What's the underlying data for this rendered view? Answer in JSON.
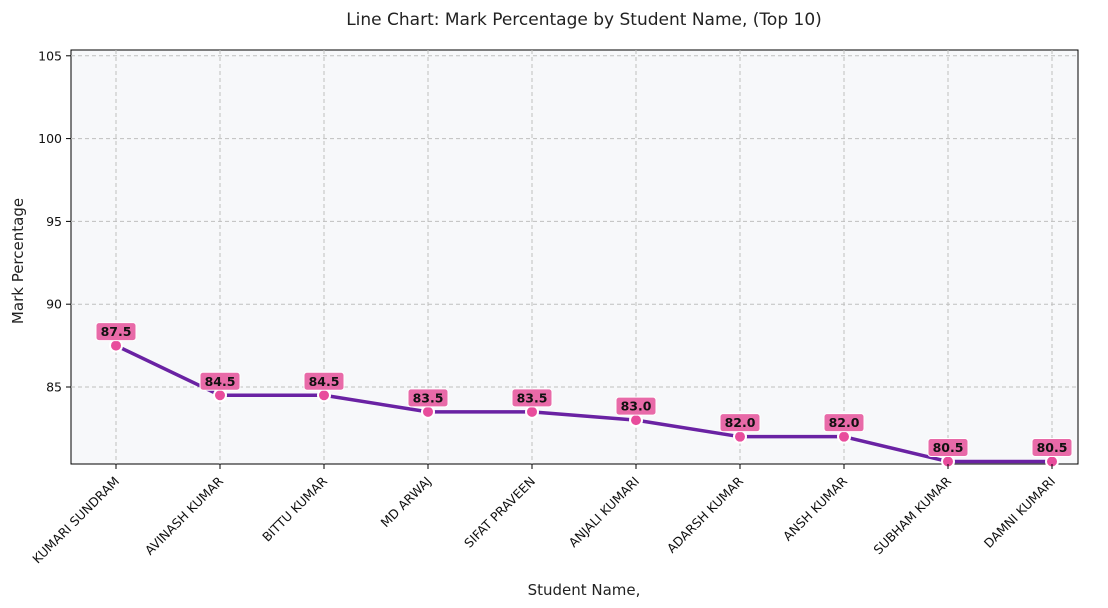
{
  "chart_data": {
    "type": "line",
    "title": "Line Chart: Mark Percentage by Student Name, (Top 10)",
    "xlabel": "Student Name,",
    "ylabel": "Mark Percentage",
    "categories": [
      "KUMARI SUNDRAM",
      "AVINASH KUMAR",
      "BITTU KUMAR",
      "MD ARWAJ",
      "SIFAT PRAVEEN",
      "ANJALI KUMARI",
      "ADARSH KUMAR",
      "ANSH KUMAR",
      "SUBHAM KUMAR",
      "DAMNI KUMARI"
    ],
    "values": [
      87.5,
      84.5,
      84.5,
      83.5,
      83.5,
      83.0,
      82.0,
      82.0,
      80.5,
      80.5
    ],
    "data_labels": [
      "87.5",
      "84.5",
      "84.5",
      "83.5",
      "83.5",
      "83.0",
      "82.0",
      "82.0",
      "80.5",
      "80.5"
    ],
    "ylim": [
      80.35,
      105.35
    ],
    "yticks": [
      85,
      90,
      95,
      100,
      105
    ],
    "ytick_labels": [
      "85",
      "90",
      "95",
      "100",
      "105"
    ],
    "grid": true,
    "colors": {
      "line": "#6a22a3",
      "marker": "#e84c9c",
      "label_bg": "#e86aa8",
      "plot_bg": "#f7f8fa",
      "grid": "#bfbfbf"
    }
  }
}
